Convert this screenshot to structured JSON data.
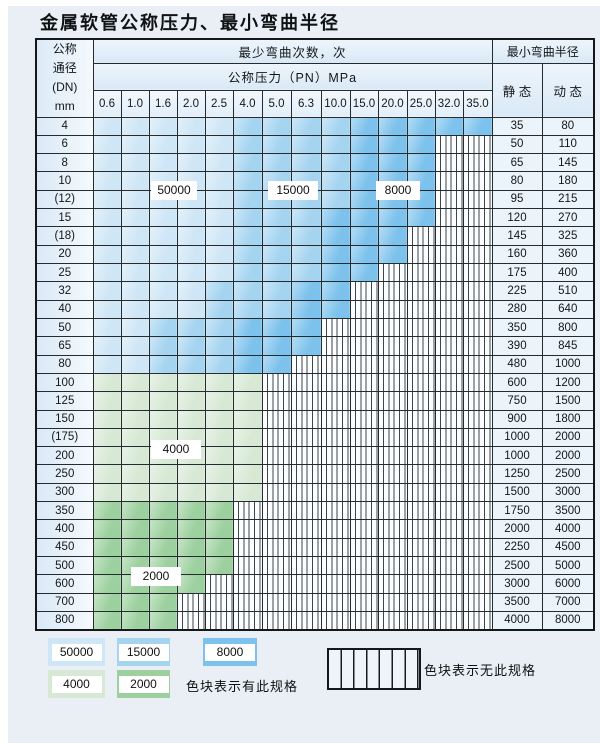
{
  "title": "金属软管公称压力、最小弯曲半径",
  "table": {
    "header": {
      "dn_label_lines": [
        "公称",
        "通径",
        "(DN)",
        "mm"
      ],
      "bend_cycles_label": "最少弯曲次数，次",
      "pressure_label": "公称压力（PN）MPa",
      "min_bend_radius_label": "最小弯曲半径",
      "static_label": "静 态",
      "dynamic_label": "动 态",
      "pressure_columns": [
        "0.6",
        "1.0",
        "1.6",
        "2.0",
        "2.5",
        "4.0",
        "5.0",
        "6.3",
        "10.0",
        "15.0",
        "20.0",
        "25.0",
        "32.0",
        "35.0"
      ]
    },
    "zone_colors": {
      "b1": "#cfe6f6",
      "b2": "#a5d4f1",
      "b3": "#7cc2ec",
      "g1": "#d7e9d5",
      "g2": "#9cd09e"
    },
    "zone_values": {
      "b1": "50000",
      "b2": "15000",
      "b3": "8000",
      "g1": "4000",
      "g2": "2000"
    },
    "rows": [
      {
        "dn": "4",
        "zones": [
          "b1",
          "b1",
          "b1",
          "b1",
          "b1",
          "b2",
          "b2",
          "b2",
          "b2",
          "b3",
          "b3",
          "b3",
          "b3",
          "b3"
        ],
        "static": "35",
        "dynamic": "80"
      },
      {
        "dn": "6",
        "zones": [
          "b1",
          "b1",
          "b1",
          "b1",
          "b1",
          "b2",
          "b2",
          "b2",
          "b2",
          "b3",
          "b3",
          "b3",
          "x",
          "x"
        ],
        "static": "50",
        "dynamic": "110"
      },
      {
        "dn": "8",
        "zones": [
          "b1",
          "b1",
          "b1",
          "b1",
          "b1",
          "b2",
          "b2",
          "b2",
          "b2",
          "b3",
          "b3",
          "b3",
          "x",
          "x"
        ],
        "static": "65",
        "dynamic": "145"
      },
      {
        "dn": "10",
        "zones": [
          "b1",
          "b1",
          "b1",
          "b1",
          "b1",
          "b2",
          "b2",
          "b2",
          "b2",
          "b3",
          "b3",
          "b3",
          "x",
          "x"
        ],
        "static": "80",
        "dynamic": "180"
      },
      {
        "dn": "(12)",
        "zones": [
          "b1",
          "b1",
          "b1",
          "b1",
          "b1",
          "b2",
          "b2",
          "b2",
          "b2",
          "b3",
          "b3",
          "b3",
          "x",
          "x"
        ],
        "static": "95",
        "dynamic": "215"
      },
      {
        "dn": "15",
        "zones": [
          "b1",
          "b1",
          "b1",
          "b1",
          "b1",
          "b2",
          "b2",
          "b2",
          "b3",
          "b3",
          "b3",
          "b3",
          "x",
          "x"
        ],
        "static": "120",
        "dynamic": "270"
      },
      {
        "dn": "(18)",
        "zones": [
          "b1",
          "b1",
          "b1",
          "b1",
          "b1",
          "b2",
          "b2",
          "b2",
          "b3",
          "b3",
          "b3",
          "x",
          "x",
          "x"
        ],
        "static": "145",
        "dynamic": "325"
      },
      {
        "dn": "20",
        "zones": [
          "b1",
          "b1",
          "b1",
          "b1",
          "b1",
          "b2",
          "b2",
          "b2",
          "b3",
          "b3",
          "b3",
          "x",
          "x",
          "x"
        ],
        "static": "160",
        "dynamic": "360"
      },
      {
        "dn": "25",
        "zones": [
          "b1",
          "b1",
          "b1",
          "b1",
          "b1",
          "b2",
          "b2",
          "b2",
          "b3",
          "b3",
          "x",
          "x",
          "x",
          "x"
        ],
        "static": "175",
        "dynamic": "400"
      },
      {
        "dn": "32",
        "zones": [
          "b1",
          "b1",
          "b1",
          "b1",
          "b2",
          "b2",
          "b2",
          "b3",
          "b3",
          "x",
          "x",
          "x",
          "x",
          "x"
        ],
        "static": "225",
        "dynamic": "510"
      },
      {
        "dn": "40",
        "zones": [
          "b1",
          "b1",
          "b1",
          "b1",
          "b2",
          "b2",
          "b2",
          "b3",
          "b3",
          "x",
          "x",
          "x",
          "x",
          "x"
        ],
        "static": "280",
        "dynamic": "640"
      },
      {
        "dn": "50",
        "zones": [
          "b1",
          "b1",
          "b2",
          "b2",
          "b2",
          "b3",
          "b3",
          "b3",
          "x",
          "x",
          "x",
          "x",
          "x",
          "x"
        ],
        "static": "350",
        "dynamic": "800"
      },
      {
        "dn": "65",
        "zones": [
          "b1",
          "b1",
          "b2",
          "b2",
          "b2",
          "b3",
          "b3",
          "b3",
          "x",
          "x",
          "x",
          "x",
          "x",
          "x"
        ],
        "static": "390",
        "dynamic": "845"
      },
      {
        "dn": "80",
        "zones": [
          "b1",
          "b1",
          "b2",
          "b2",
          "b2",
          "b3",
          "b3",
          "x",
          "x",
          "x",
          "x",
          "x",
          "x",
          "x"
        ],
        "static": "480",
        "dynamic": "1000"
      },
      {
        "dn": "100",
        "zones": [
          "g1",
          "g1",
          "g1",
          "g1",
          "g1",
          "g1",
          "x",
          "x",
          "x",
          "x",
          "x",
          "x",
          "x",
          "x"
        ],
        "static": "600",
        "dynamic": "1200"
      },
      {
        "dn": "125",
        "zones": [
          "g1",
          "g1",
          "g1",
          "g1",
          "g1",
          "g1",
          "x",
          "x",
          "x",
          "x",
          "x",
          "x",
          "x",
          "x"
        ],
        "static": "750",
        "dynamic": "1500"
      },
      {
        "dn": "150",
        "zones": [
          "g1",
          "g1",
          "g1",
          "g1",
          "g1",
          "g1",
          "x",
          "x",
          "x",
          "x",
          "x",
          "x",
          "x",
          "x"
        ],
        "static": "900",
        "dynamic": "1800"
      },
      {
        "dn": "(175)",
        "zones": [
          "g1",
          "g1",
          "g1",
          "g1",
          "g1",
          "g1",
          "x",
          "x",
          "x",
          "x",
          "x",
          "x",
          "x",
          "x"
        ],
        "static": "1000",
        "dynamic": "2000"
      },
      {
        "dn": "200",
        "zones": [
          "g1",
          "g1",
          "g1",
          "g1",
          "g1",
          "g1",
          "x",
          "x",
          "x",
          "x",
          "x",
          "x",
          "x",
          "x"
        ],
        "static": "1000",
        "dynamic": "2000"
      },
      {
        "dn": "250",
        "zones": [
          "g1",
          "g1",
          "g1",
          "g1",
          "g1",
          "g1",
          "x",
          "x",
          "x",
          "x",
          "x",
          "x",
          "x",
          "x"
        ],
        "static": "1250",
        "dynamic": "2500"
      },
      {
        "dn": "300",
        "zones": [
          "g1",
          "g1",
          "g1",
          "g1",
          "g1",
          "g1",
          "x",
          "x",
          "x",
          "x",
          "x",
          "x",
          "x",
          "x"
        ],
        "static": "1500",
        "dynamic": "3000"
      },
      {
        "dn": "350",
        "zones": [
          "g2",
          "g2",
          "g2",
          "g2",
          "g2",
          "x",
          "x",
          "x",
          "x",
          "x",
          "x",
          "x",
          "x",
          "x"
        ],
        "static": "1750",
        "dynamic": "3500"
      },
      {
        "dn": "400",
        "zones": [
          "g2",
          "g2",
          "g2",
          "g2",
          "g2",
          "x",
          "x",
          "x",
          "x",
          "x",
          "x",
          "x",
          "x",
          "x"
        ],
        "static": "2000",
        "dynamic": "4000"
      },
      {
        "dn": "450",
        "zones": [
          "g2",
          "g2",
          "g2",
          "g2",
          "g2",
          "x",
          "x",
          "x",
          "x",
          "x",
          "x",
          "x",
          "x",
          "x"
        ],
        "static": "2250",
        "dynamic": "4500"
      },
      {
        "dn": "500",
        "zones": [
          "g2",
          "g2",
          "g2",
          "g2",
          "g2",
          "x",
          "x",
          "x",
          "x",
          "x",
          "x",
          "x",
          "x",
          "x"
        ],
        "static": "2500",
        "dynamic": "5000"
      },
      {
        "dn": "600",
        "zones": [
          "g2",
          "g2",
          "g2",
          "g2",
          "x",
          "x",
          "x",
          "x",
          "x",
          "x",
          "x",
          "x",
          "x",
          "x"
        ],
        "static": "3000",
        "dynamic": "6000"
      },
      {
        "dn": "700",
        "zones": [
          "g2",
          "g2",
          "g2",
          "x",
          "x",
          "x",
          "x",
          "x",
          "x",
          "x",
          "x",
          "x",
          "x",
          "x"
        ],
        "static": "3500",
        "dynamic": "7000"
      },
      {
        "dn": "800",
        "zones": [
          "g2",
          "g2",
          "g2",
          "x",
          "x",
          "x",
          "x",
          "x",
          "x",
          "x",
          "x",
          "x",
          "x",
          "x"
        ],
        "static": "4000",
        "dynamic": "8000"
      }
    ]
  },
  "legend": {
    "items": [
      {
        "value": "50000",
        "zone": "b1"
      },
      {
        "value": "15000",
        "zone": "b2"
      },
      {
        "value": "8000",
        "zone": "b3"
      },
      {
        "value": "4000",
        "zone": "g1"
      },
      {
        "value": "2000",
        "zone": "g2"
      }
    ],
    "has_spec_text": "色块表示有此规格",
    "no_spec_text": "色块表示无此规格"
  },
  "chart_data": {
    "type": "heatmap",
    "title": "金属软管公称压力、最小弯曲半径",
    "x_label": "公称压力（PN）MPa",
    "x_categories": [
      0.6,
      1.0,
      1.6,
      2.0,
      2.5,
      4.0,
      5.0,
      6.3,
      10.0,
      15.0,
      20.0,
      25.0,
      32.0,
      35.0
    ],
    "y_label": "公称通径 (DN) mm",
    "y_categories": [
      "4",
      "6",
      "8",
      "10",
      "(12)",
      "15",
      "(18)",
      "20",
      "25",
      "32",
      "40",
      "50",
      "65",
      "80",
      "100",
      "125",
      "150",
      "(175)",
      "200",
      "250",
      "300",
      "350",
      "400",
      "450",
      "500",
      "600",
      "700",
      "800"
    ],
    "cell_value_meaning": "最少弯曲次数，次 (null = 无此规格)",
    "series": [
      {
        "dn": "4",
        "max_pn": 35.0,
        "cycles_by_pn_range": {
          "50000": [
            0.6,
            2.5
          ],
          "15000": [
            4.0,
            10.0
          ],
          "8000": [
            15.0,
            35.0
          ]
        },
        "static_radius": 35,
        "dynamic_radius": 80
      },
      {
        "dn": "6",
        "max_pn": 25.0,
        "cycles_by_pn_range": {
          "50000": [
            0.6,
            2.5
          ],
          "15000": [
            4.0,
            10.0
          ],
          "8000": [
            15.0,
            25.0
          ]
        },
        "static_radius": 50,
        "dynamic_radius": 110
      },
      {
        "dn": "8",
        "max_pn": 25.0,
        "cycles_by_pn_range": {
          "50000": [
            0.6,
            2.5
          ],
          "15000": [
            4.0,
            10.0
          ],
          "8000": [
            15.0,
            25.0
          ]
        },
        "static_radius": 65,
        "dynamic_radius": 145
      },
      {
        "dn": "10",
        "max_pn": 25.0,
        "cycles_by_pn_range": {
          "50000": [
            0.6,
            2.5
          ],
          "15000": [
            4.0,
            10.0
          ],
          "8000": [
            15.0,
            25.0
          ]
        },
        "static_radius": 80,
        "dynamic_radius": 180
      },
      {
        "dn": "(12)",
        "max_pn": 25.0,
        "cycles_by_pn_range": {
          "50000": [
            0.6,
            2.5
          ],
          "15000": [
            4.0,
            10.0
          ],
          "8000": [
            15.0,
            25.0
          ]
        },
        "static_radius": 95,
        "dynamic_radius": 215
      },
      {
        "dn": "15",
        "max_pn": 25.0,
        "cycles_by_pn_range": {
          "50000": [
            0.6,
            2.5
          ],
          "15000": [
            4.0,
            6.3
          ],
          "8000": [
            10.0,
            25.0
          ]
        },
        "static_radius": 120,
        "dynamic_radius": 270
      },
      {
        "dn": "(18)",
        "max_pn": 20.0,
        "cycles_by_pn_range": {
          "50000": [
            0.6,
            2.5
          ],
          "15000": [
            4.0,
            6.3
          ],
          "8000": [
            10.0,
            20.0
          ]
        },
        "static_radius": 145,
        "dynamic_radius": 325
      },
      {
        "dn": "20",
        "max_pn": 20.0,
        "cycles_by_pn_range": {
          "50000": [
            0.6,
            2.5
          ],
          "15000": [
            4.0,
            6.3
          ],
          "8000": [
            10.0,
            20.0
          ]
        },
        "static_radius": 160,
        "dynamic_radius": 360
      },
      {
        "dn": "25",
        "max_pn": 15.0,
        "cycles_by_pn_range": {
          "50000": [
            0.6,
            2.5
          ],
          "15000": [
            4.0,
            6.3
          ],
          "8000": [
            10.0,
            15.0
          ]
        },
        "static_radius": 175,
        "dynamic_radius": 400
      },
      {
        "dn": "32",
        "max_pn": 10.0,
        "cycles_by_pn_range": {
          "50000": [
            0.6,
            2.0
          ],
          "15000": [
            2.5,
            5.0
          ],
          "8000": [
            6.3,
            10.0
          ]
        },
        "static_radius": 225,
        "dynamic_radius": 510
      },
      {
        "dn": "40",
        "max_pn": 10.0,
        "cycles_by_pn_range": {
          "50000": [
            0.6,
            2.0
          ],
          "15000": [
            2.5,
            5.0
          ],
          "8000": [
            6.3,
            10.0
          ]
        },
        "static_radius": 280,
        "dynamic_radius": 640
      },
      {
        "dn": "50",
        "max_pn": 6.3,
        "cycles_by_pn_range": {
          "50000": [
            0.6,
            1.0
          ],
          "15000": [
            1.6,
            2.5
          ],
          "8000": [
            4.0,
            6.3
          ]
        },
        "static_radius": 350,
        "dynamic_radius": 800
      },
      {
        "dn": "65",
        "max_pn": 6.3,
        "cycles_by_pn_range": {
          "50000": [
            0.6,
            1.0
          ],
          "15000": [
            1.6,
            2.5
          ],
          "8000": [
            4.0,
            6.3
          ]
        },
        "static_radius": 390,
        "dynamic_radius": 845
      },
      {
        "dn": "80",
        "max_pn": 5.0,
        "cycles_by_pn_range": {
          "50000": [
            0.6,
            1.0
          ],
          "15000": [
            1.6,
            2.5
          ],
          "8000": [
            4.0,
            5.0
          ]
        },
        "static_radius": 480,
        "dynamic_radius": 1000
      },
      {
        "dn": "100",
        "max_pn": 4.0,
        "cycles_by_pn_range": {
          "4000": [
            0.6,
            4.0
          ]
        },
        "static_radius": 600,
        "dynamic_radius": 1200
      },
      {
        "dn": "125",
        "max_pn": 4.0,
        "cycles_by_pn_range": {
          "4000": [
            0.6,
            4.0
          ]
        },
        "static_radius": 750,
        "dynamic_radius": 1500
      },
      {
        "dn": "150",
        "max_pn": 4.0,
        "cycles_by_pn_range": {
          "4000": [
            0.6,
            4.0
          ]
        },
        "static_radius": 900,
        "dynamic_radius": 1800
      },
      {
        "dn": "(175)",
        "max_pn": 4.0,
        "cycles_by_pn_range": {
          "4000": [
            0.6,
            4.0
          ]
        },
        "static_radius": 1000,
        "dynamic_radius": 2000
      },
      {
        "dn": "200",
        "max_pn": 4.0,
        "cycles_by_pn_range": {
          "4000": [
            0.6,
            4.0
          ]
        },
        "static_radius": 1000,
        "dynamic_radius": 2000
      },
      {
        "dn": "250",
        "max_pn": 4.0,
        "cycles_by_pn_range": {
          "4000": [
            0.6,
            4.0
          ]
        },
        "static_radius": 1250,
        "dynamic_radius": 2500
      },
      {
        "dn": "300",
        "max_pn": 4.0,
        "cycles_by_pn_range": {
          "4000": [
            0.6,
            4.0
          ]
        },
        "static_radius": 1500,
        "dynamic_radius": 3000
      },
      {
        "dn": "350",
        "max_pn": 2.5,
        "cycles_by_pn_range": {
          "2000": [
            0.6,
            2.5
          ]
        },
        "static_radius": 1750,
        "dynamic_radius": 3500
      },
      {
        "dn": "400",
        "max_pn": 2.5,
        "cycles_by_pn_range": {
          "2000": [
            0.6,
            2.5
          ]
        },
        "static_radius": 2000,
        "dynamic_radius": 4000
      },
      {
        "dn": "450",
        "max_pn": 2.5,
        "cycles_by_pn_range": {
          "2000": [
            0.6,
            2.5
          ]
        },
        "static_radius": 2250,
        "dynamic_radius": 4500
      },
      {
        "dn": "500",
        "max_pn": 2.5,
        "cycles_by_pn_range": {
          "2000": [
            0.6,
            2.5
          ]
        },
        "static_radius": 2500,
        "dynamic_radius": 5000
      },
      {
        "dn": "600",
        "max_pn": 2.0,
        "cycles_by_pn_range": {
          "2000": [
            0.6,
            2.0
          ]
        },
        "static_radius": 3000,
        "dynamic_radius": 6000
      },
      {
        "dn": "700",
        "max_pn": 1.6,
        "cycles_by_pn_range": {
          "2000": [
            0.6,
            1.6
          ]
        },
        "static_radius": 3500,
        "dynamic_radius": 7000
      },
      {
        "dn": "800",
        "max_pn": 1.6,
        "cycles_by_pn_range": {
          "2000": [
            0.6,
            1.6
          ]
        },
        "static_radius": 4000,
        "dynamic_radius": 8000
      }
    ],
    "legend_entries": [
      "50000",
      "15000",
      "8000",
      "4000",
      "2000",
      "色块表示有此规格",
      "色块表示无此规格"
    ],
    "legend_position": "bottom"
  }
}
